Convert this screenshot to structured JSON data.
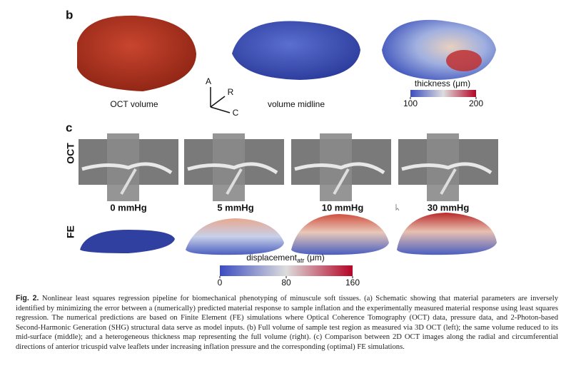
{
  "figure": {
    "panel_b": {
      "label": "b",
      "captions": [
        "OCT volume",
        "volume midline"
      ],
      "axes": [
        "A",
        "R",
        "C"
      ],
      "colorbar": {
        "label": "thickness (μm)",
        "range": [
          100,
          200
        ],
        "ticks": [
          100,
          200
        ]
      }
    },
    "panel_c": {
      "label": "c",
      "rows": [
        "OCT",
        "FE"
      ],
      "pressures": [
        "0 mmHg",
        "5 mmHg",
        "10 mmHg",
        "30 mmHg"
      ],
      "colorbar": {
        "label": "displacement",
        "subscript": "atr",
        "unit": " (μm)",
        "range": [
          0,
          160
        ],
        "ticks": [
          0,
          80,
          160
        ]
      }
    }
  },
  "caption": {
    "number": "Fig. 2.",
    "text": "Nonlinear least squares regression pipeline for biomechanical phenotyping of minuscule soft tissues. (a) Schematic showing that material parameters are inversely identified by minimizing the error between a (numerically) predicted material response to sample inflation and the experimentally measured material response using least squares regression. The numerical predictions are based on Finite Element (FE) simulations where Optical Coherence Tomography (OCT) data, pressure data, and 2-Photon-based Second-Harmonic Generation (SHG) structural data serve as model inputs. (b) Full volume of sample test region as measured via 3D OCT (left); the same volume reduced to its mid-surface (middle); and a heterogeneous thickness map representing the full volume (right). (c) Comparison between 2D OCT images along the radial and circumferential directions of anterior tricuspid valve leaflets under increasing inflation pressure and the corresponding (optimal) FE simulations."
  }
}
